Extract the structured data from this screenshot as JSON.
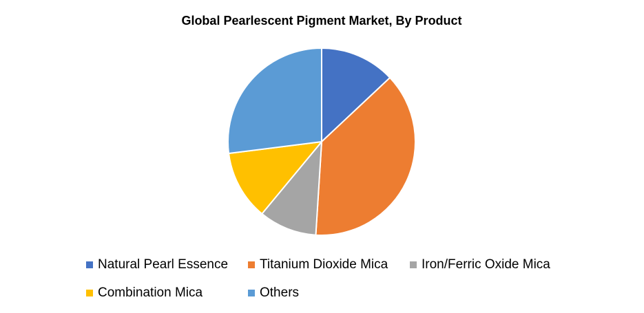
{
  "chart_data": {
    "type": "pie",
    "title": "Global Pearlescent Pigment Market, By Product",
    "categories": [
      "Natural Pearl Essence",
      "Titanium Dioxide Mica",
      "Iron/Ferric Oxide Mica",
      "Combination Mica",
      "Others"
    ],
    "values": [
      13,
      38,
      10,
      12,
      27
    ],
    "colors": [
      "#4472c4",
      "#ed7d31",
      "#a5a5a5",
      "#ffc000",
      "#5b9bd5"
    ],
    "legend": "bottom"
  }
}
